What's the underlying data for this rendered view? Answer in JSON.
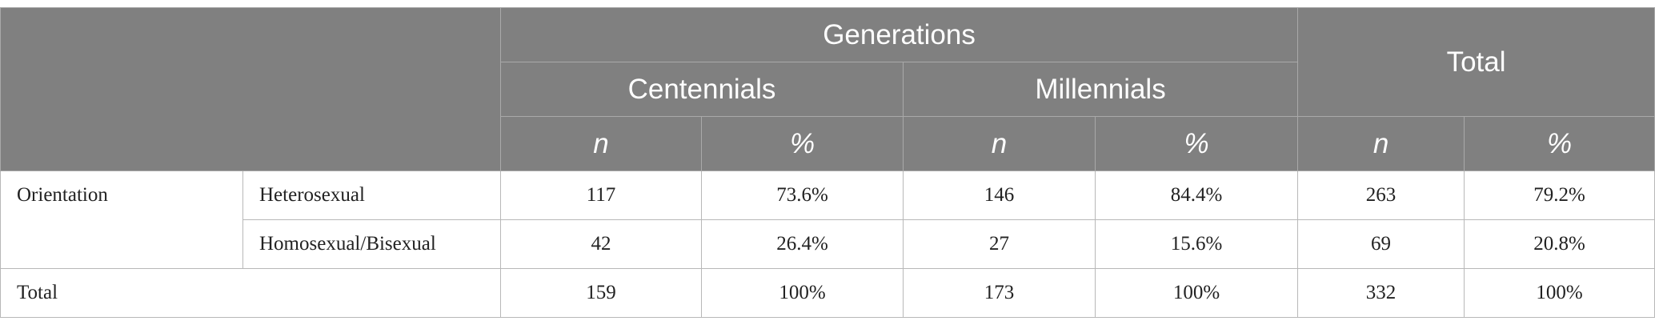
{
  "table": {
    "header": {
      "group": "Generations",
      "total": "Total",
      "subgroups": [
        "Centennials",
        "Millennials"
      ],
      "stats": [
        "n",
        "%",
        "n",
        "%",
        "n",
        "%"
      ]
    },
    "rows": [
      {
        "group": "Orientation",
        "label": "Heterosexual",
        "cells": [
          "117",
          "73.6%",
          "146",
          "84.4%",
          "263",
          "79.2%"
        ]
      },
      {
        "label": "Homosexual/Bisexual",
        "cells": [
          "42",
          "26.4%",
          "27",
          "15.6%",
          "69",
          "20.8%"
        ]
      }
    ],
    "footer": {
      "label": "Total",
      "cells": [
        "159",
        "100%",
        "173",
        "100%",
        "332",
        "100%"
      ]
    }
  }
}
